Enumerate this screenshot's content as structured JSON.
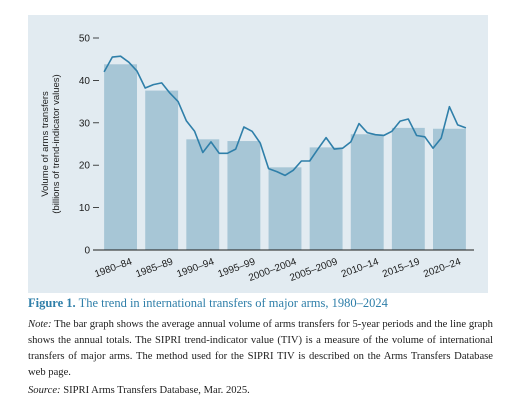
{
  "chart_data": {
    "type": "bar",
    "ylabel_lines": [
      "Volume of arms transfers",
      "(billions of trend-indicator values)"
    ],
    "ylim": [
      0,
      50
    ],
    "yticks": [
      0,
      10,
      20,
      30,
      40,
      50
    ],
    "grid": false,
    "categories": [
      "1980–84",
      "1985–89",
      "1990–94",
      "1995–99",
      "2000–2004",
      "2005–2009",
      "2010–14",
      "2015–19",
      "2020–24"
    ],
    "series": [
      {
        "type": "bar",
        "values": [
          43.8,
          37.6,
          26.1,
          25.7,
          19.5,
          24.2,
          27.3,
          28.8,
          28.6
        ]
      },
      {
        "type": "line",
        "x": [
          1980,
          1981,
          1982,
          1983,
          1984,
          1985,
          1986,
          1987,
          1988,
          1989,
          1990,
          1991,
          1992,
          1993,
          1994,
          1995,
          1996,
          1997,
          1998,
          1999,
          2000,
          2001,
          2002,
          2003,
          2004,
          2005,
          2006,
          2007,
          2008,
          2009,
          2010,
          2011,
          2012,
          2013,
          2014,
          2015,
          2016,
          2017,
          2018,
          2019,
          2020,
          2021,
          2022,
          2023,
          2024
        ],
        "values": [
          42.0,
          45.5,
          45.7,
          44.3,
          42.2,
          38.2,
          39.0,
          39.4,
          37.0,
          35.0,
          30.5,
          28.0,
          23.0,
          25.5,
          22.8,
          22.8,
          23.8,
          29.0,
          28.0,
          25.2,
          19.2,
          18.5,
          17.6,
          18.8,
          21.0,
          21.0,
          23.8,
          26.5,
          23.8,
          24.0,
          25.5,
          29.8,
          27.7,
          27.2,
          27.0,
          28.0,
          30.4,
          30.9,
          27.0,
          26.7,
          24.0,
          26.4,
          33.8,
          29.5,
          28.8
        ]
      }
    ],
    "bar_color": "#a7c6d6",
    "line_color": "#2f7fa9",
    "background_color": "#e2ebf1"
  },
  "caption": {
    "figure_label": "Figure 1.",
    "figure_title": "The trend in international transfers of major arms, 1980–2024",
    "note_label": "Note:",
    "note_text": "The bar graph shows the average annual volume of arms transfers for 5-year periods and the line graph shows the annual totals. The SIPRI trend-indicator value (TIV) is a measure of the volume of international transfers of major arms. The method used for the SIPRI TIV is described on the Arms Transfers Database web page.",
    "source_label": "Source:",
    "source_text": "SIPRI Arms Transfers Database, Mar. 2025."
  }
}
